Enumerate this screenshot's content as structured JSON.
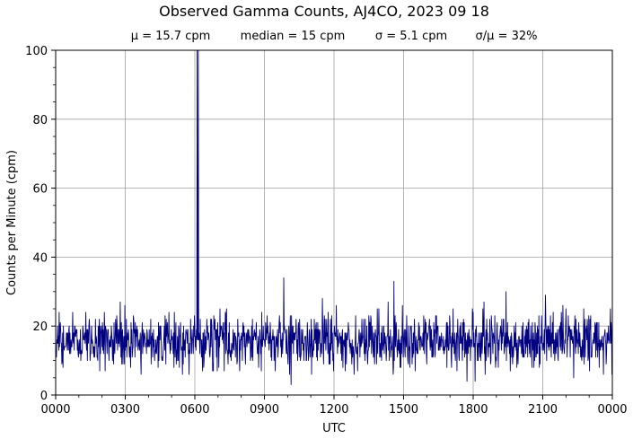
{
  "chart_data": {
    "type": "line",
    "title": "Observed Gamma Counts, AJ4CO, 2023 09 18",
    "stats": [
      "μ = 15.7 cpm",
      "median = 15 cpm",
      "σ = 5.1 cpm",
      "σ/μ = 32%"
    ],
    "xlabel": "UTC",
    "ylabel": "Counts per Minute (cpm)",
    "x_unit": "minutes since 0000 UTC",
    "xlim": [
      0,
      1440
    ],
    "ylim": [
      0,
      100
    ],
    "x_ticks": [
      {
        "value": 0,
        "label": "0000"
      },
      {
        "value": 180,
        "label": "0300"
      },
      {
        "value": 360,
        "label": "0600"
      },
      {
        "value": 540,
        "label": "0900"
      },
      {
        "value": 720,
        "label": "1200"
      },
      {
        "value": 900,
        "label": "1500"
      },
      {
        "value": 1080,
        "label": "1800"
      },
      {
        "value": 1260,
        "label": "2100"
      },
      {
        "value": 1440,
        "label": "0000"
      }
    ],
    "y_ticks": [
      {
        "value": 0,
        "label": "0"
      },
      {
        "value": 20,
        "label": "20"
      },
      {
        "value": 40,
        "label": "40"
      },
      {
        "value": 60,
        "label": "60"
      },
      {
        "value": 80,
        "label": "80"
      },
      {
        "value": 100,
        "label": "100"
      }
    ],
    "grid": true,
    "color": "#000080",
    "series": [
      {
        "name": "",
        "mean": 15.7,
        "stdev": 5.1,
        "samples_per_day": 1440,
        "peaks": [
          {
            "x": 366,
            "y": 100
          },
          {
            "x": 369,
            "y": 100
          },
          {
            "x": 590,
            "y": 34
          },
          {
            "x": 875,
            "y": 33
          },
          {
            "x": 1165,
            "y": 30
          },
          {
            "x": 1267,
            "y": 29
          },
          {
            "x": 167,
            "y": 27
          },
          {
            "x": 690,
            "y": 28
          }
        ],
        "troughs": [
          {
            "x": 609,
            "y": 3
          },
          {
            "x": 1064,
            "y": 4
          },
          {
            "x": 1085,
            "y": 4
          },
          {
            "x": 221,
            "y": 6
          }
        ]
      }
    ]
  }
}
